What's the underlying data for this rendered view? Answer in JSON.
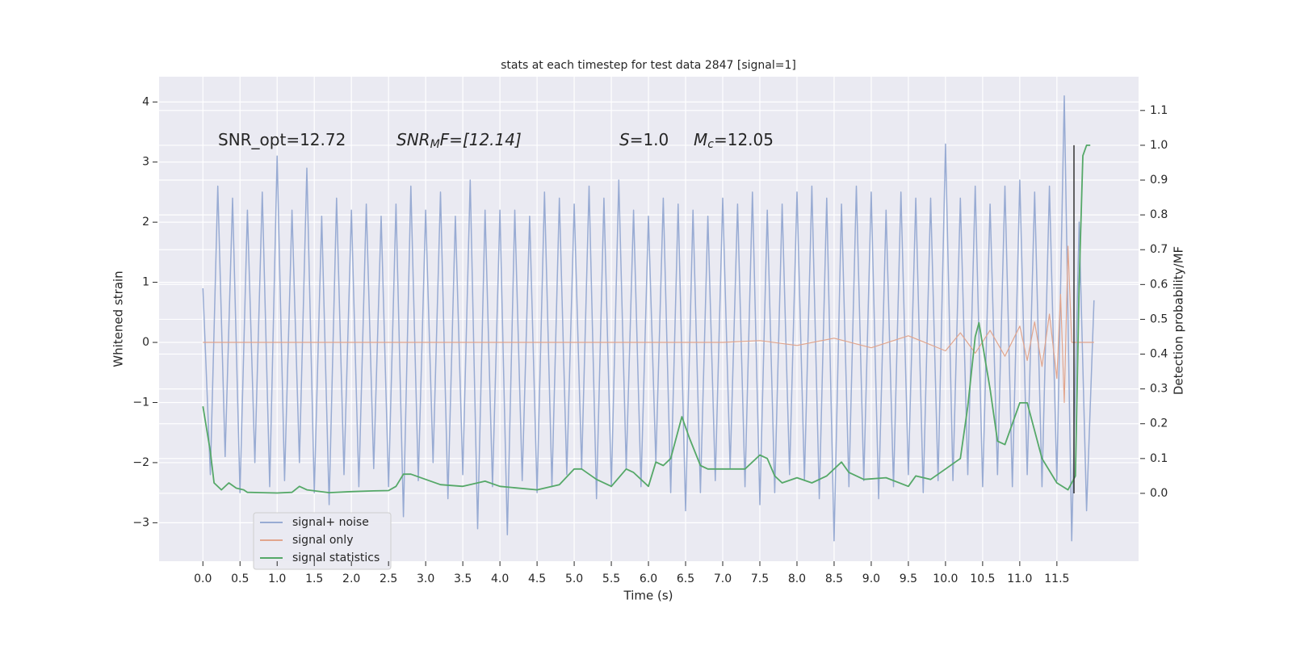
{
  "chart_data": {
    "type": "line",
    "title": "stats at each timestep for test data 2847 [signal=1]",
    "xlabel": "Time (s)",
    "ylabel": "Whitened strain",
    "y2label": "Detection probability/MF",
    "annotations": [
      [
        "SNR_opt=12.72"
      ],
      [
        "SNR",
        "M",
        "F=[12.14]"
      ],
      [
        "S",
        "=1.0"
      ],
      [
        "M",
        "c",
        "=12.05"
      ]
    ],
    "xlim": [
      -0.59,
      12.6
    ],
    "ylim": [
      -3.64,
      4.42
    ],
    "y2lim": [
      -0.195,
      1.197
    ],
    "xticks": [
      {
        "value": 0,
        "label": "0.0"
      },
      0.5,
      {
        "value": 1,
        "label": "1.0"
      },
      1.5,
      {
        "value": 2,
        "label": "2.0"
      },
      2.5,
      {
        "value": 3,
        "label": "3.0"
      },
      3.5,
      {
        "value": 4,
        "label": "4.0"
      },
      4.5,
      {
        "value": 5,
        "label": "5.0"
      },
      5.5,
      {
        "value": 6,
        "label": "6.0"
      },
      6.5,
      {
        "value": 7,
        "label": "7.0"
      },
      7.5,
      {
        "value": 8,
        "label": "8.0"
      },
      8.5,
      {
        "value": 9,
        "label": "9.0"
      },
      9.5,
      {
        "value": 10,
        "label": "10.0"
      },
      10.5,
      {
        "value": 11,
        "label": "11.0"
      },
      11.5
    ],
    "yticks": [
      {
        "value": -3,
        "label": "−3"
      },
      {
        "value": -2,
        "label": "−2"
      },
      {
        "value": -1,
        "label": "−1"
      },
      0,
      1,
      2,
      3,
      4
    ],
    "y2ticks": [
      {
        "value": 0,
        "label": "0.0"
      },
      0.1,
      0.2,
      0.3,
      0.4,
      0.5,
      0.6,
      0.7,
      0.8,
      0.9,
      {
        "value": 1,
        "label": "1.0"
      },
      1.1
    ],
    "grid": true,
    "legend": "lower left",
    "vline": {
      "x": 11.73,
      "ylim": [
        0,
        1.0
      ],
      "axis": "y2",
      "color": "#333333"
    },
    "series": [
      {
        "name": "signal+ noise",
        "color": "#98abd3",
        "x": [
          0,
          0.1,
          0.2,
          0.3,
          0.4,
          0.5,
          0.6,
          0.7,
          0.8,
          0.9,
          1,
          1.1,
          1.2,
          1.3,
          1.4,
          1.5,
          1.6,
          1.7,
          1.8,
          1.9,
          2,
          2.1,
          2.2,
          2.3,
          2.4,
          2.5,
          2.6,
          2.7,
          2.8,
          2.9,
          3,
          3.1,
          3.2,
          3.3,
          3.4,
          3.5,
          3.6,
          3.7,
          3.8,
          3.9,
          4,
          4.1,
          4.2,
          4.3,
          4.4,
          4.5,
          4.6,
          4.7,
          4.8,
          4.9,
          5,
          5.1,
          5.2,
          5.3,
          5.4,
          5.5,
          5.6,
          5.7,
          5.8,
          5.9,
          6,
          6.1,
          6.2,
          6.3,
          6.4,
          6.5,
          6.6,
          6.7,
          6.8,
          6.9,
          7,
          7.1,
          7.2,
          7.3,
          7.4,
          7.5,
          7.6,
          7.7,
          7.8,
          7.9,
          8,
          8.1,
          8.2,
          8.3,
          8.4,
          8.5,
          8.6,
          8.7,
          8.8,
          8.9,
          9,
          9.1,
          9.2,
          9.3,
          9.4,
          9.5,
          9.6,
          9.7,
          9.8,
          9.9,
          10,
          10.1,
          10.2,
          10.3,
          10.4,
          10.5,
          10.6,
          10.7,
          10.8,
          10.9,
          11,
          11.1,
          11.2,
          11.3,
          11.4,
          11.5,
          11.6,
          11.7,
          11.8,
          11.9,
          12
        ],
        "values": [
          0.9,
          -2.2,
          2.6,
          -1.9,
          2.4,
          -2.5,
          2.2,
          -2.0,
          2.5,
          -2.4,
          3.1,
          -2.3,
          2.2,
          -2.0,
          2.9,
          -2.5,
          2.1,
          -2.7,
          2.4,
          -2.2,
          2.2,
          -2.4,
          2.3,
          -2.1,
          2.1,
          -2.4,
          2.3,
          -2.9,
          2.6,
          -2.3,
          2.2,
          -2.0,
          2.5,
          -2.6,
          2.1,
          -2.2,
          2.7,
          -3.1,
          2.2,
          -2.4,
          2.2,
          -3.2,
          2.2,
          -2.3,
          2.1,
          -2.5,
          2.5,
          -2.4,
          2.4,
          -2.2,
          2.3,
          -2.1,
          2.6,
          -2.6,
          2.4,
          -2.4,
          2.7,
          -2.1,
          2.2,
          -2.4,
          2.1,
          -2.0,
          2.4,
          -2.5,
          2.3,
          -2.8,
          2.2,
          -2.5,
          2.1,
          -2.3,
          2.4,
          -2.1,
          2.3,
          -2.4,
          2.5,
          -2.7,
          2.2,
          -2.5,
          2.3,
          -2.2,
          2.5,
          -2.3,
          2.6,
          -2.6,
          2.4,
          -3.3,
          2.3,
          -2.4,
          2.6,
          -2.3,
          2.5,
          -2.6,
          2.2,
          -2.4,
          2.5,
          -2.2,
          2.4,
          -2.5,
          2.4,
          -2.3,
          3.3,
          -2.3,
          2.4,
          -2.2,
          2.6,
          -2.4,
          2.3,
          -2.2,
          2.6,
          -2.4,
          2.7,
          -2.2,
          2.5,
          -2.4,
          2.6,
          -2.3,
          4.1,
          -3.3,
          2.0,
          -2.8,
          0.7
        ]
      },
      {
        "name": "signal only",
        "color": "#e1a58d",
        "x": [
          0,
          7,
          7.5,
          8,
          8.5,
          9,
          9.5,
          10,
          10.2,
          10.4,
          10.6,
          10.8,
          11,
          11.1,
          11.2,
          11.3,
          11.4,
          11.5,
          11.55,
          11.6,
          11.65,
          11.7,
          12
        ],
        "values": [
          0,
          0,
          0.03,
          -0.05,
          0.07,
          -0.09,
          0.11,
          -0.14,
          0.16,
          -0.18,
          0.2,
          -0.23,
          0.27,
          -0.3,
          0.34,
          -0.4,
          0.47,
          -0.6,
          0.8,
          -1.0,
          1.6,
          0,
          0
        ]
      },
      {
        "name": "signal statistics",
        "color": "#55a868",
        "axis": "y2",
        "x": [
          0,
          0.1,
          0.15,
          0.25,
          0.35,
          0.45,
          0.55,
          0.6,
          0.8,
          1,
          1.2,
          1.3,
          1.4,
          1.7,
          2,
          2.3,
          2.5,
          2.6,
          2.7,
          2.8,
          3,
          3.2,
          3.5,
          3.7,
          3.8,
          4,
          4.5,
          4.8,
          5,
          5.1,
          5.3,
          5.5,
          5.7,
          5.8,
          6,
          6.1,
          6.2,
          6.3,
          6.45,
          6.55,
          6.7,
          6.8,
          7,
          7.3,
          7.5,
          7.6,
          7.7,
          7.8,
          8,
          8.2,
          8.4,
          8.6,
          8.7,
          8.9,
          9.2,
          9.5,
          9.6,
          9.8,
          10,
          10.2,
          10.3,
          10.4,
          10.45,
          10.6,
          10.7,
          10.8,
          11,
          11.1,
          11.3,
          11.5,
          11.65,
          11.75,
          11.8,
          11.85,
          11.9,
          11.95
        ],
        "values": [
          0.25,
          0.12,
          0.03,
          0.01,
          0.03,
          0.015,
          0.01,
          0.003,
          0.002,
          0.001,
          0.003,
          0.02,
          0.01,
          0.002,
          0.005,
          0.007,
          0.008,
          0.02,
          0.055,
          0.055,
          0.04,
          0.025,
          0.02,
          0.03,
          0.035,
          0.02,
          0.01,
          0.025,
          0.07,
          0.07,
          0.04,
          0.02,
          0.07,
          0.06,
          0.02,
          0.09,
          0.08,
          0.1,
          0.22,
          0.16,
          0.08,
          0.07,
          0.07,
          0.07,
          0.11,
          0.1,
          0.05,
          0.03,
          0.045,
          0.03,
          0.05,
          0.09,
          0.06,
          0.04,
          0.045,
          0.02,
          0.05,
          0.04,
          0.07,
          0.1,
          0.25,
          0.45,
          0.49,
          0.3,
          0.15,
          0.14,
          0.26,
          0.26,
          0.1,
          0.03,
          0.01,
          0.05,
          0.6,
          0.97,
          1.0,
          1.0
        ]
      }
    ]
  }
}
